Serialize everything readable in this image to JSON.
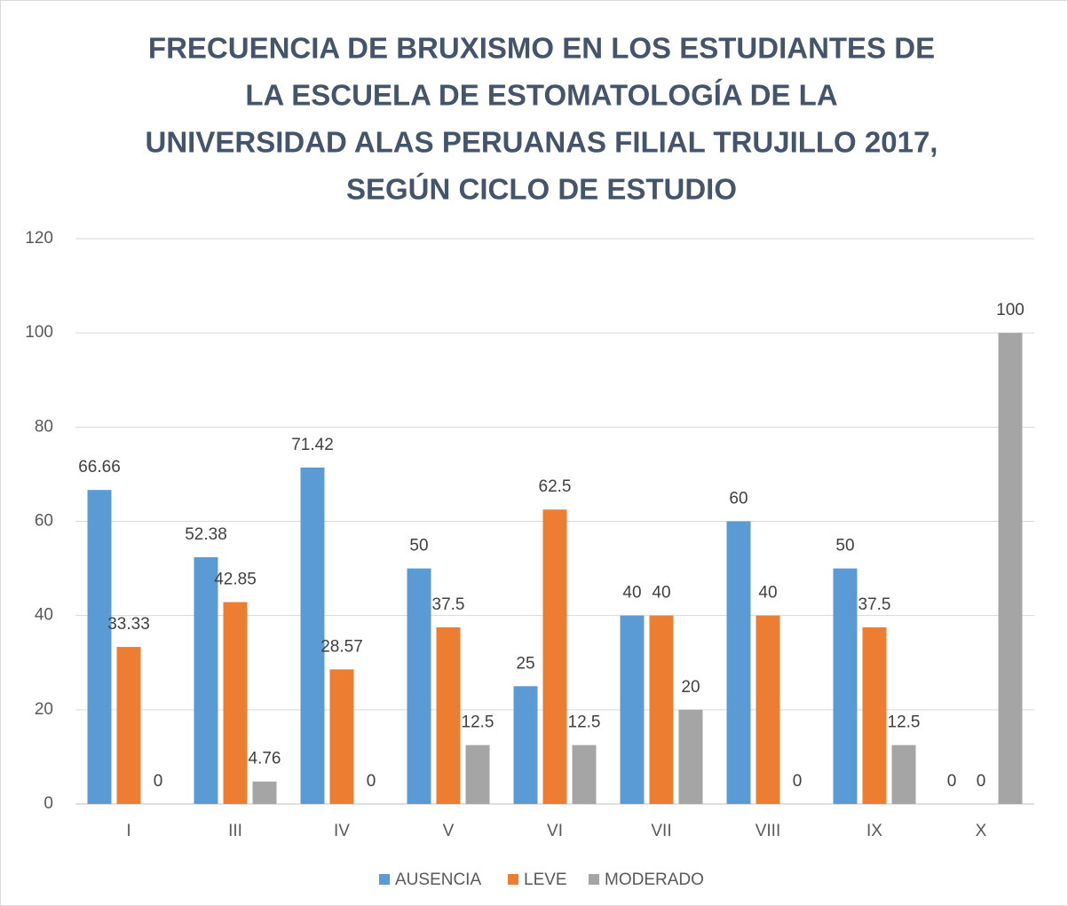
{
  "chart_data": {
    "type": "bar",
    "title": [
      "FRECUENCIA DE BRUXISMO EN LOS ESTUDIANTES DE",
      "LA ESCUELA DE ESTOMATOLOGÍA  DE LA",
      "UNIVERSIDAD ALAS PERUANAS FILIAL TRUJILLO 2017,",
      "SEGÚN CICLO DE ESTUDIO"
    ],
    "categories": [
      "I",
      "III",
      "IV",
      "V",
      "VI",
      "VII",
      "VIII",
      "IX",
      "X"
    ],
    "series": [
      {
        "name": "AUSENCIA",
        "color": "#5b9bd5",
        "values": [
          66.66,
          52.38,
          71.42,
          50,
          25,
          40,
          60,
          50,
          0
        ]
      },
      {
        "name": "LEVE",
        "color": "#ed7d31",
        "values": [
          33.33,
          42.85,
          28.57,
          37.5,
          62.5,
          40,
          40,
          37.5,
          0
        ]
      },
      {
        "name": "MODERADO",
        "color": "#a5a5a5",
        "values": [
          0,
          4.76,
          0,
          12.5,
          12.5,
          20,
          0,
          12.5,
          100
        ]
      }
    ],
    "ylim": [
      0,
      120
    ],
    "yticks": [
      0,
      20,
      40,
      60,
      80,
      100,
      120
    ],
    "grid": true,
    "legend": "bottom"
  }
}
